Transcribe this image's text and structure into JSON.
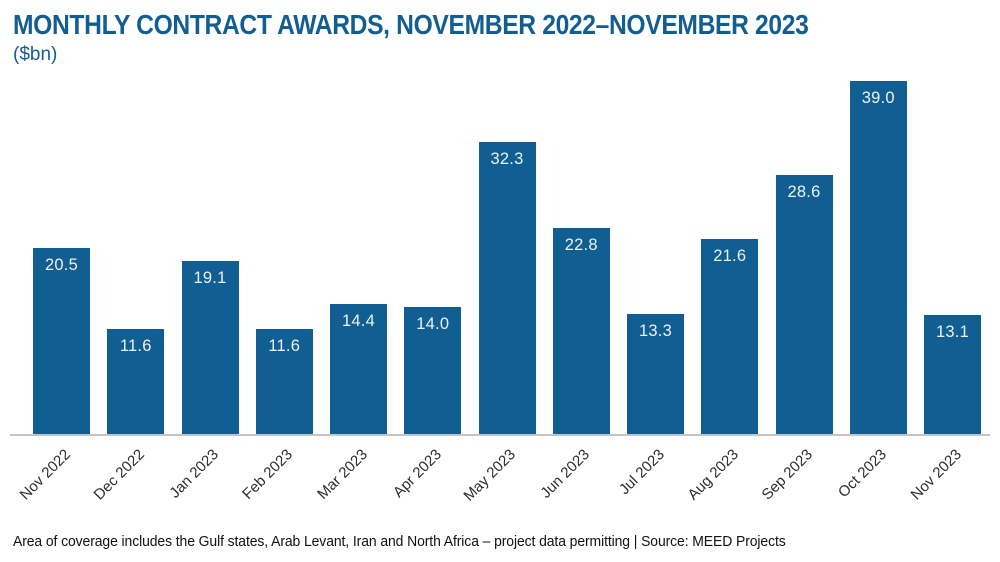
{
  "header": {
    "title": "MONTHLY CONTRACT AWARDS, NOVEMBER 2022–NOVEMBER 2023",
    "subtitle": "($bn)"
  },
  "chart_data": {
    "type": "bar",
    "title": "MONTHLY CONTRACT AWARDS, NOVEMBER 2022–NOVEMBER 2023",
    "subtitle_unit": "($bn)",
    "categories": [
      "Nov 2022",
      "Dec 2022",
      "Jan 2023",
      "Feb 2023",
      "Mar 2023",
      "Apr 2023",
      "May 2023",
      "Jun 2023",
      "Jul 2023",
      "Aug 2023",
      "Sep 2023",
      "Oct 2023",
      "Nov 2023"
    ],
    "values": [
      20.5,
      11.6,
      19.1,
      11.6,
      14.4,
      14.0,
      32.3,
      22.8,
      13.3,
      21.6,
      28.6,
      39.0,
      13.1
    ],
    "xlabel": "",
    "ylabel": "($bn)",
    "ylim": [
      0,
      39
    ],
    "grid": false,
    "legend": "none",
    "value_labels_inside_bars": true,
    "colors": {
      "bar": "#115e92",
      "value_label": "#edf1f2",
      "tick_label": "#2d2d2d",
      "axis_line": "#c4c4c4"
    }
  },
  "footer": {
    "note": "Area of coverage includes the Gulf states, Arab Levant, Iran and North Africa – project data permitting | Source: MEED Projects"
  }
}
